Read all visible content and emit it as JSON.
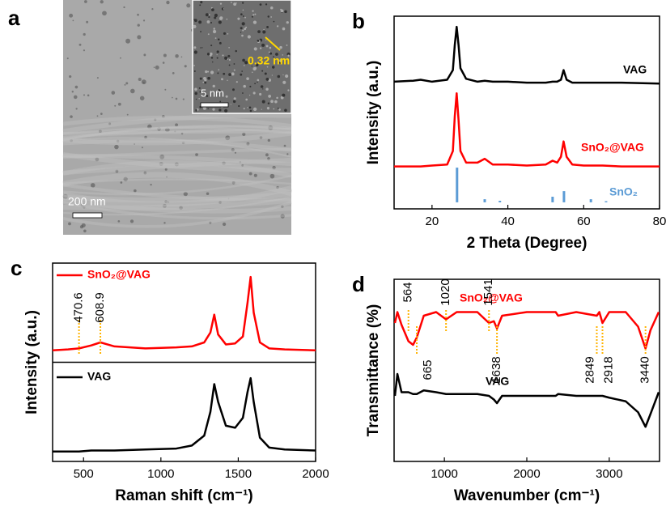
{
  "image_panel": {
    "panel_label": "a",
    "scale_bar": "200 nm",
    "inset_scale_bar": "5 nm",
    "lattice_spacing": "0.32 nm"
  },
  "chart_data": [
    {
      "type": "line",
      "panel_label": "b",
      "xlabel": "2 Theta (Degree)",
      "ylabel": "Intensity (a.u.)",
      "xlim": [
        10,
        80
      ],
      "xticks": [
        20,
        40,
        60,
        80
      ],
      "ylim": [
        0,
        100
      ],
      "x": [
        10,
        15,
        17,
        20,
        24,
        25.5,
        26,
        26.5,
        27,
        27.5,
        29,
        32,
        33.9,
        36,
        40,
        45,
        50,
        51.8,
        53,
        54,
        54.7,
        55.5,
        57,
        60,
        65,
        70,
        80
      ],
      "series": [
        {
          "name": "VAG",
          "color": "#000000",
          "values": [
            66,
            66.5,
            67,
            66,
            67,
            72,
            85,
            94.5,
            85,
            73,
            67.5,
            66,
            66.5,
            66,
            66,
            65.5,
            65.5,
            66,
            66,
            67,
            72,
            67,
            65.5,
            65.5,
            65.5,
            65.5,
            65
          ]
        },
        {
          "name": "SnO₂@VAG",
          "color": "#ff0000",
          "values": [
            22,
            22,
            22,
            22.5,
            23,
            30,
            48,
            60,
            46,
            30,
            24,
            24,
            26,
            23,
            23,
            22.5,
            23,
            25,
            24,
            27,
            35,
            27,
            23,
            22.5,
            22.5,
            22,
            22
          ]
        },
        {
          "name": "SnO₂",
          "color": "#5b9bd5",
          "type": "stick",
          "baseline": 3.4,
          "x": [
            26.6,
            33.9,
            37.9,
            51.8,
            54.8,
            61.9,
            65.9
          ],
          "values": [
            21.4,
            5,
            4.2,
            6.3,
            9.2,
            5,
            4
          ]
        }
      ]
    },
    {
      "type": "line",
      "panel_label": "c",
      "xlabel": "Raman shift (cm⁻¹)",
      "ylabel": "Intensity (a.u.)",
      "xlim": [
        300,
        2000
      ],
      "xticks": [
        500,
        1000,
        1500,
        2000
      ],
      "ylim": [
        0,
        100
      ],
      "peak_marks": [
        470.6,
        608.9
      ],
      "x": [
        300,
        400,
        470.6,
        550,
        608.9,
        700,
        900,
        1100,
        1200,
        1280,
        1320,
        1345,
        1370,
        1420,
        1480,
        1530,
        1560,
        1580,
        1600,
        1640,
        1700,
        1800,
        2000
      ],
      "series": [
        {
          "name": "SnO₂@VAG",
          "color": "#ff0000",
          "values": [
            56,
            56.5,
            57,
            58.5,
            60,
            58,
            57,
            57.5,
            58,
            60,
            65,
            74,
            64,
            59,
            59.5,
            63,
            80,
            93,
            75,
            60,
            57,
            56.5,
            56
          ]
        },
        {
          "name": "VAG",
          "color": "#000000",
          "values": [
            5,
            5,
            5,
            5.5,
            5.5,
            5.5,
            6,
            6.5,
            8,
            13,
            25,
            39,
            30,
            18,
            17,
            22,
            35,
            42,
            30,
            12,
            7,
            6,
            5.5
          ]
        }
      ]
    },
    {
      "type": "line",
      "panel_label": "d",
      "xlabel": "Wavenumber (cm⁻¹)",
      "ylabel": "Transmittance (%)",
      "xlim": [
        390,
        3610
      ],
      "xticks": [
        1000,
        2000,
        3000
      ],
      "ylim": [
        0,
        100
      ],
      "peak_marks": [
        564,
        665,
        1020,
        1541,
        1638,
        2849,
        2918,
        3440
      ],
      "x": [
        400,
        430,
        480,
        564,
        620,
        665,
        750,
        900,
        1020,
        1150,
        1400,
        1541,
        1600,
        1638,
        1700,
        2000,
        2350,
        2380,
        2600,
        2849,
        2880,
        2918,
        3000,
        3200,
        3350,
        3440,
        3500,
        3600
      ],
      "series": [
        {
          "name": "SnO₂@VAG",
          "color": "#ff0000",
          "values": [
            76,
            82,
            75,
            66,
            64,
            68,
            80,
            82,
            78,
            82,
            82,
            76,
            77,
            73,
            80,
            82,
            82,
            80,
            82,
            80,
            82,
            76,
            82,
            82,
            74,
            62,
            72,
            82
          ]
        },
        {
          "name": "VAG",
          "color": "#000000",
          "values": [
            36,
            48,
            38,
            38,
            37,
            37,
            39,
            38,
            37,
            37,
            37,
            36,
            34,
            32,
            36,
            36,
            36,
            37,
            36,
            36,
            36,
            36,
            35,
            33,
            27,
            19,
            26,
            38
          ]
        }
      ]
    }
  ]
}
